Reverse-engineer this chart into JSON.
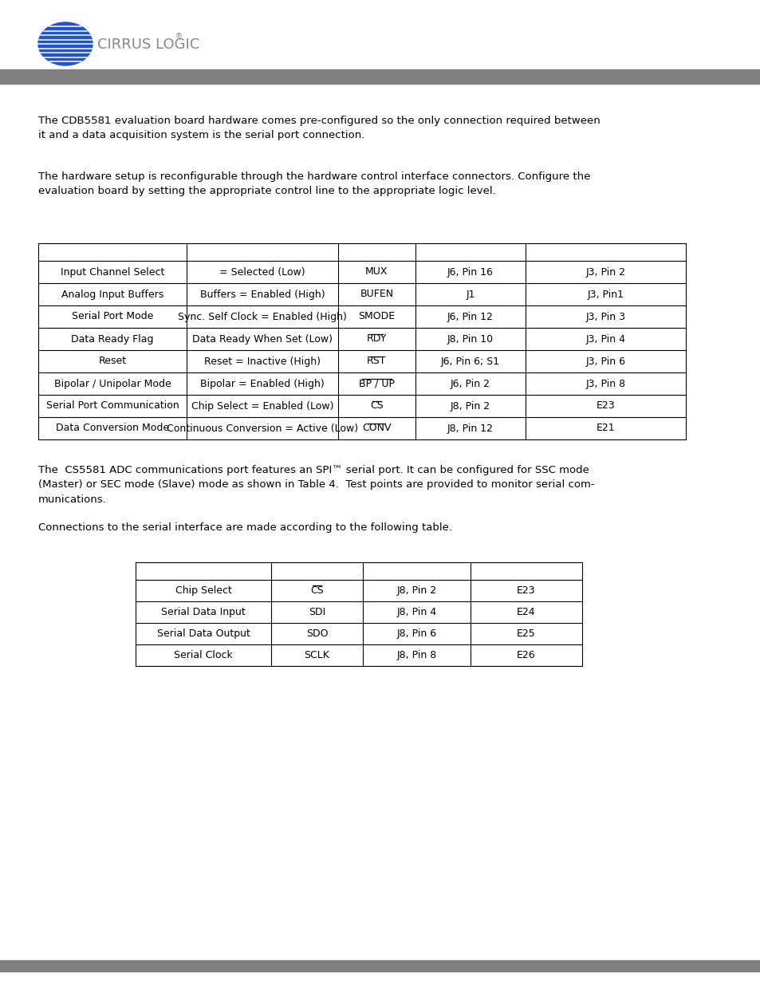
{
  "background_color": "#ffffff",
  "header_bar_color": "#7f7f7f",
  "footer_bar_color": "#7f7f7f",
  "para1": "The CDB5581 evaluation board hardware comes pre-configured so the only connection required between\nit and a data acquisition system is the serial port connection.",
  "para2": "The hardware setup is reconfigurable through the hardware control interface connectors. Configure the\nevaluation board by setting the appropriate control line to the appropriate logic level.",
  "table1_rows": [
    [
      "Input Channel Select",
      "= Selected (Low)",
      "MUX",
      "J6, Pin 16",
      "J3, Pin 2"
    ],
    [
      "Analog Input Buffers",
      "Buffers = Enabled (High)",
      "BUFEN",
      "J1",
      "J3, Pin1"
    ],
    [
      "Serial Port Mode",
      "Sync. Self Clock = Enabled (High)",
      "SMODE",
      "J6, Pin 12",
      "J3, Pin 3"
    ],
    [
      "Data Ready Flag",
      "Data Ready When Set (Low)",
      "RDY",
      "J8, Pin 10",
      "J3, Pin 4"
    ],
    [
      "Reset",
      "Reset = Inactive (High)",
      "RST",
      "J6, Pin 6; S1",
      "J3, Pin 6"
    ],
    [
      "Bipolar / Unipolar Mode",
      "Bipolar = Enabled (High)",
      "BP / UP",
      "J6, Pin 2",
      "J3, Pin 8"
    ],
    [
      "Serial Port Communication",
      "Chip Select = Enabled (Low)",
      "CS",
      "J8, Pin 2",
      "E23"
    ],
    [
      "Data Conversion Mode",
      "Continuous Conversion = Active (Low)",
      "CONV",
      "J8, Pin 12",
      "E21"
    ]
  ],
  "table1_overline": [
    [
      3,
      2,
      "RDY"
    ],
    [
      4,
      2,
      "RST"
    ],
    [
      5,
      2,
      "BP / UP"
    ],
    [
      6,
      2,
      "CS"
    ],
    [
      7,
      2,
      "CONV"
    ]
  ],
  "para3": "The  CS5581 ADC communications port features an SPI™ serial port. It can be configured for SSC mode\n(Master) or SEC mode (Slave) mode as shown in Table 4.  Test points are provided to monitor serial com-\nmunications.",
  "para4": "Connections to the serial interface are made according to the following table.",
  "table2_rows": [
    [
      "Chip Select",
      "CS",
      "J8, Pin 2",
      "E23"
    ],
    [
      "Serial Data Input",
      "SDI",
      "J8, Pin 4",
      "E24"
    ],
    [
      "Serial Data Output",
      "SDO",
      "J8, Pin 6",
      "E25"
    ],
    [
      "Serial Clock",
      "SCLK",
      "J8, Pin 8",
      "E26"
    ]
  ],
  "table2_overline": [
    [
      0,
      1,
      "CS"
    ]
  ],
  "font_size_body": 9.5,
  "font_size_table": 9.0,
  "logo_color": "#2255cc",
  "logo_text_color": "#888888",
  "logo_font_size": 13
}
